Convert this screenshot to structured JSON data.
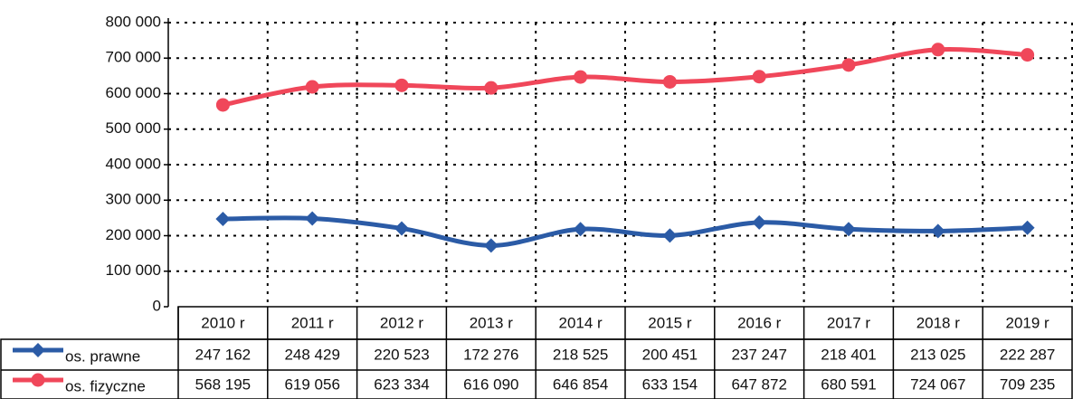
{
  "chart_data": {
    "type": "line",
    "categories": [
      "2010 r",
      "2011 r",
      "2012 r",
      "2013 r",
      "2014 r",
      "2015 r",
      "2016 r",
      "2017 r",
      "2018 r",
      "2019 r"
    ],
    "series": [
      {
        "name": "os. prawne",
        "color": "#2b5ba6",
        "marker": "diamond",
        "values": [
          247162,
          248429,
          220523,
          172276,
          218525,
          200451,
          237247,
          218401,
          213025,
          222287
        ],
        "value_labels": [
          "247 162",
          "248 429",
          "220 523",
          "172 276",
          "218 525",
          "200 451",
          "237 247",
          "218 401",
          "213 025",
          "222 287"
        ]
      },
      {
        "name": "os. fizyczne",
        "color": "#f0475a",
        "marker": "circle",
        "values": [
          568195,
          619056,
          623334,
          616090,
          646854,
          633154,
          647872,
          680591,
          724067,
          709235
        ],
        "value_labels": [
          "568 195",
          "619 056",
          "623 334",
          "616 090",
          "646 854",
          "633 154",
          "647 872",
          "680 591",
          "724 067",
          "709 235"
        ]
      }
    ],
    "ylim": [
      0,
      800000
    ],
    "yticks": [
      0,
      {
        "value": 100000,
        "label": "100 000"
      },
      {
        "value": 200000,
        "label": "200 000"
      },
      {
        "value": 300000,
        "label": "300 000"
      },
      {
        "value": 400000,
        "label": "400 000"
      },
      {
        "value": 500000,
        "label": "500 000"
      },
      {
        "value": 600000,
        "label": "600 000"
      },
      {
        "value": 700000,
        "label": "700 000"
      },
      {
        "value": 800000,
        "label": "800 000"
      }
    ],
    "grid": true,
    "smooth": true,
    "data_table": true
  }
}
